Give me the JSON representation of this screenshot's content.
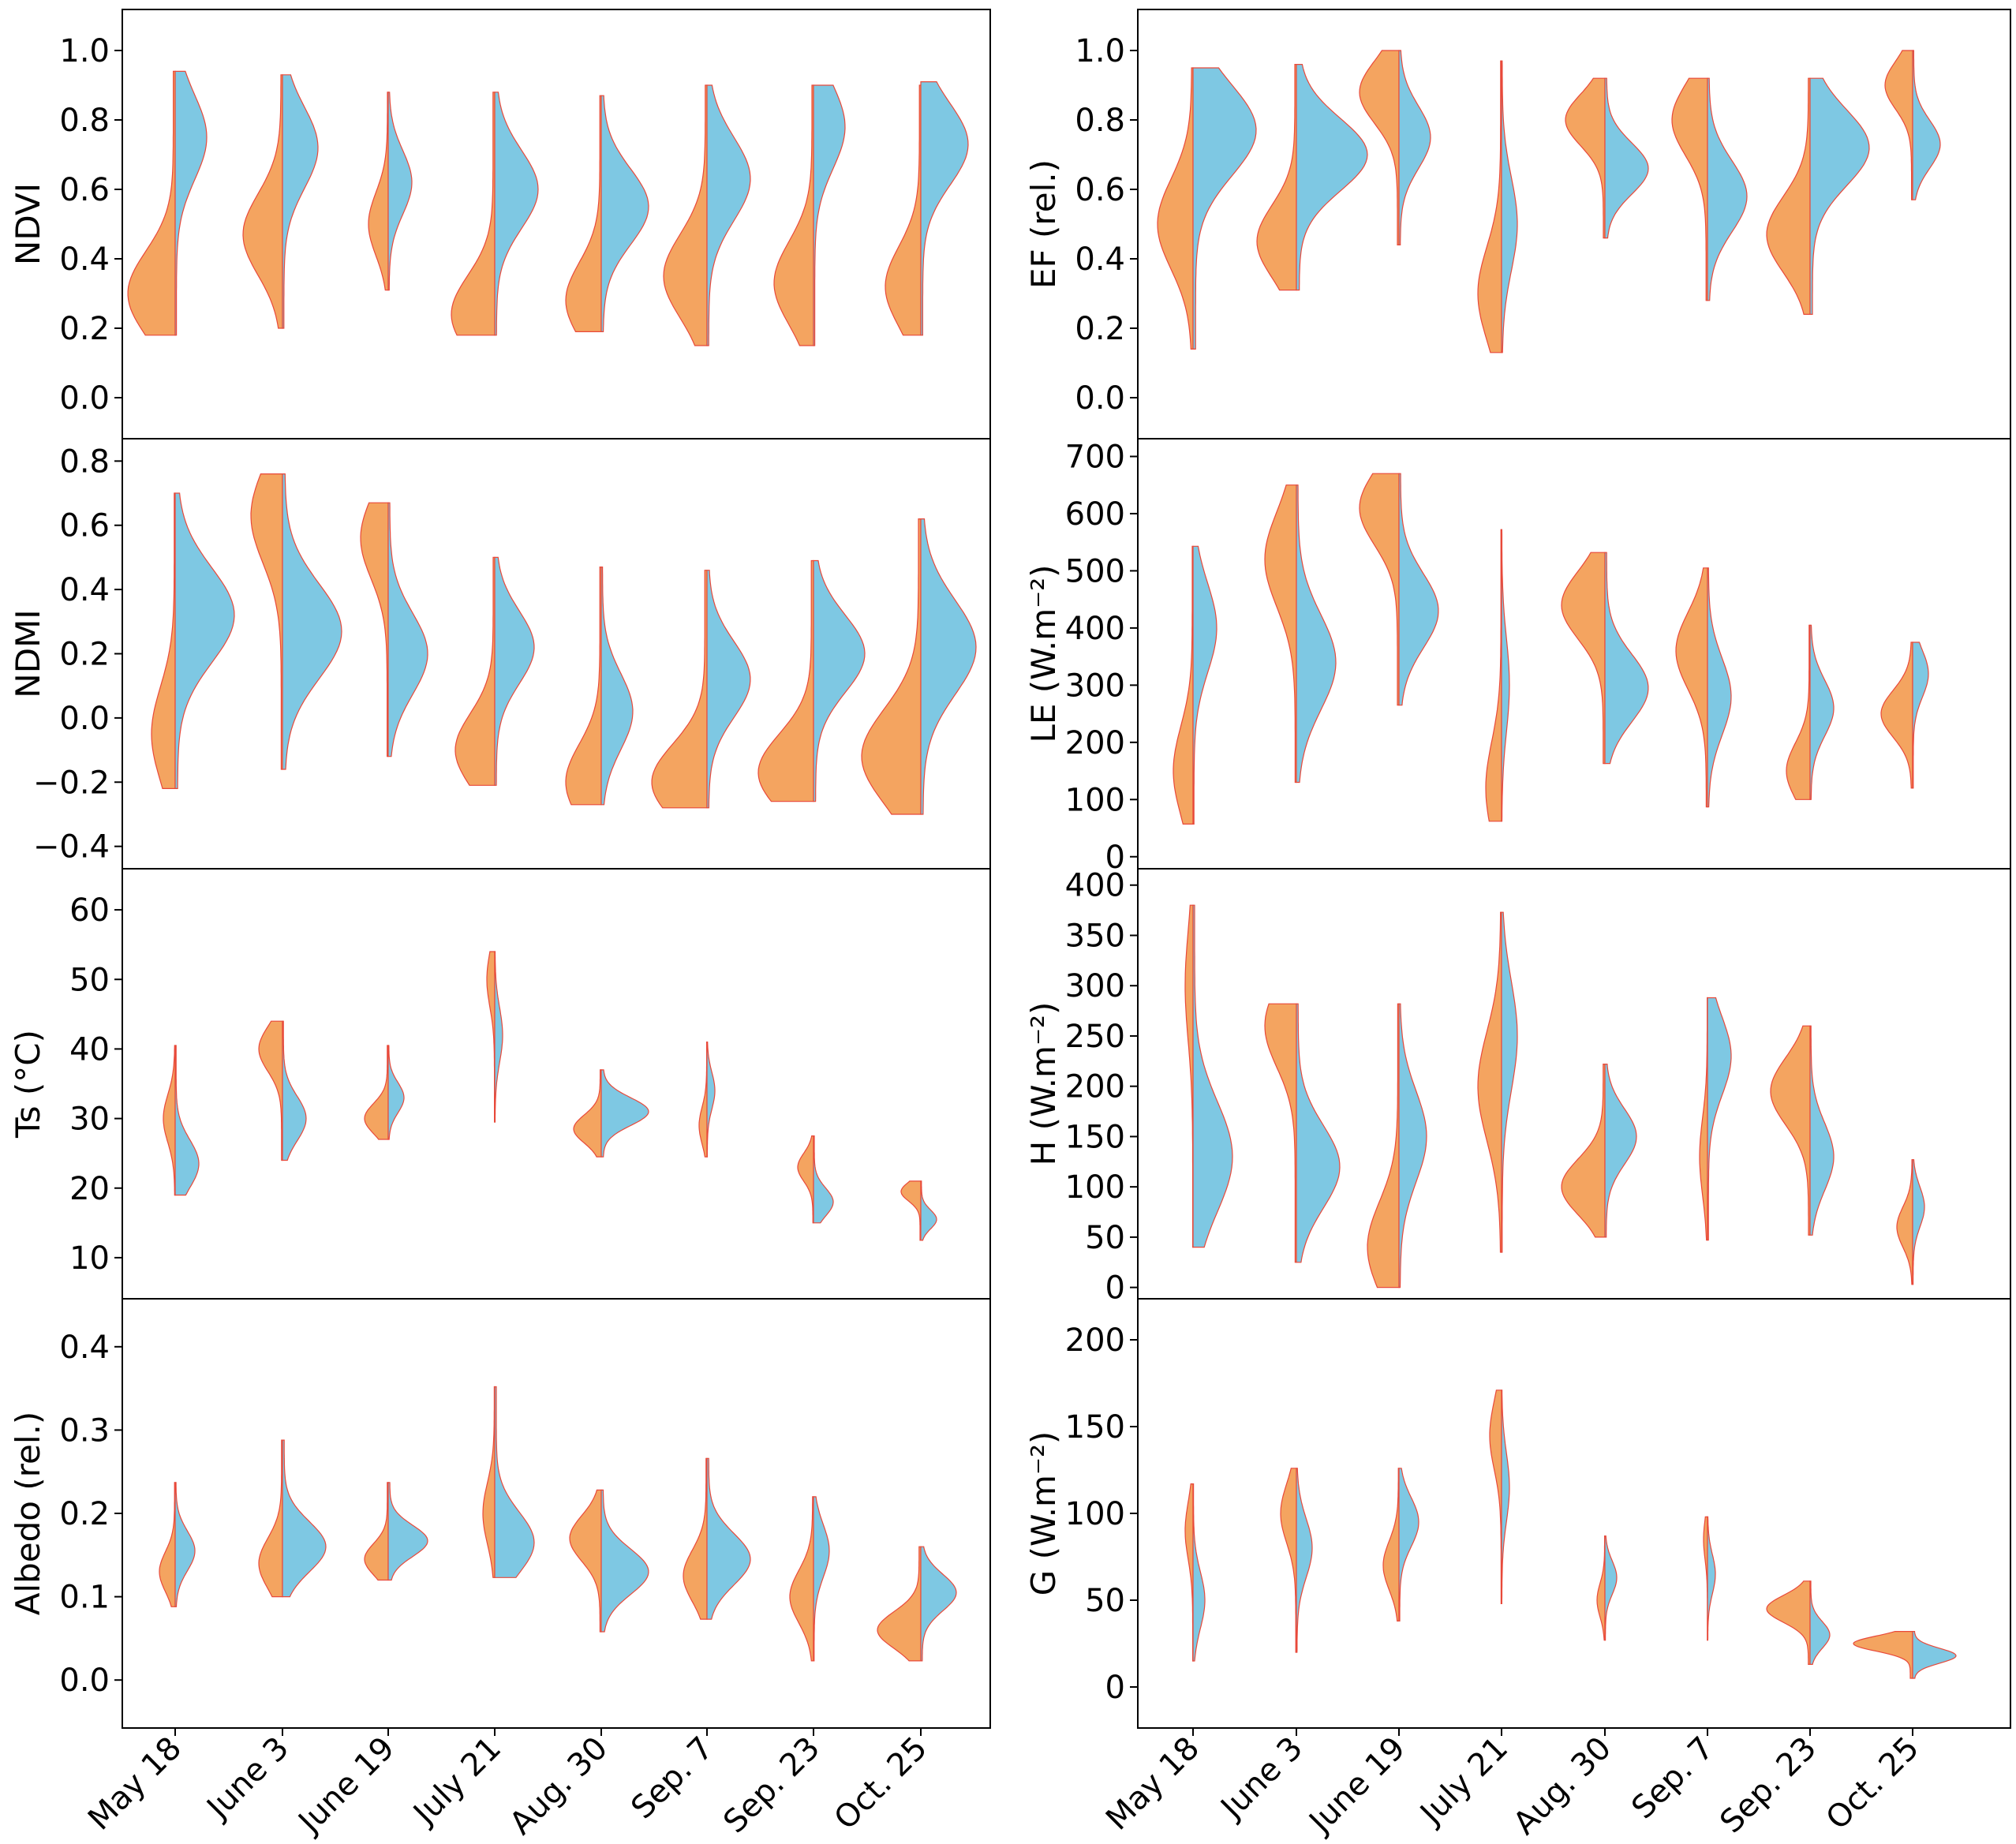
{
  "categories": [
    "May 18",
    "June 3",
    "June 19",
    "July 21",
    "Aug. 30",
    "Sep. 7",
    "Sep. 23",
    "Oct. 25"
  ],
  "colors": {
    "orange": "#f4a460",
    "blue": "#7ec8e3",
    "outline": "#e8493a",
    "axis": "#000000"
  },
  "chart_data": [
    {
      "type": "violin",
      "id": "ndvi",
      "ylabel": "NDVI",
      "ylim": [
        -0.1,
        1.1
      ],
      "yticks": [
        0.0,
        0.2,
        0.4,
        0.6,
        0.8,
        1.0
      ],
      "ytick_labels": [
        "0.0",
        "0.2",
        "0.4",
        "0.6",
        "0.8",
        "1.0"
      ],
      "series": [
        {
          "name": "orange",
          "min": [
            0.18,
            0.2,
            0.31,
            0.18,
            0.19,
            0.15,
            0.15,
            0.18
          ],
          "max": [
            0.94,
            0.93,
            0.88,
            0.88,
            0.87,
            0.9,
            0.9,
            0.9
          ],
          "peak": [
            0.3,
            0.47,
            0.5,
            0.24,
            0.28,
            0.35,
            0.33,
            0.32
          ],
          "width": [
            0.6,
            0.5,
            0.25,
            0.55,
            0.45,
            0.55,
            0.5,
            0.45
          ]
        },
        {
          "name": "blue",
          "min": [
            0.18,
            0.2,
            0.31,
            0.18,
            0.19,
            0.15,
            0.15,
            0.18
          ],
          "max": [
            0.94,
            0.93,
            0.88,
            0.88,
            0.87,
            0.9,
            0.9,
            0.91
          ],
          "peak": [
            0.75,
            0.72,
            0.62,
            0.6,
            0.55,
            0.63,
            0.78,
            0.73
          ],
          "width": [
            0.4,
            0.45,
            0.3,
            0.55,
            0.6,
            0.55,
            0.4,
            0.6
          ]
        }
      ]
    },
    {
      "type": "violin",
      "id": "ef",
      "ylabel": "EF (rel.)",
      "ylim": [
        -0.1,
        1.1
      ],
      "yticks": [
        0.0,
        0.2,
        0.4,
        0.6,
        0.8,
        1.0
      ],
      "ytick_labels": [
        "0.0",
        "0.2",
        "0.4",
        "0.6",
        "0.8",
        "1.0"
      ],
      "series": [
        {
          "name": "orange",
          "min": [
            0.14,
            0.31,
            0.44,
            0.13,
            0.46,
            0.28,
            0.24,
            0.57
          ],
          "max": [
            0.95,
            0.96,
            1.0,
            0.97,
            0.92,
            0.92,
            0.92,
            1.0
          ],
          "peak": [
            0.5,
            0.45,
            0.88,
            0.3,
            0.8,
            0.8,
            0.47,
            0.9
          ],
          "width": [
            0.45,
            0.5,
            0.5,
            0.3,
            0.5,
            0.45,
            0.55,
            0.35
          ]
        },
        {
          "name": "blue",
          "min": [
            0.14,
            0.31,
            0.44,
            0.13,
            0.46,
            0.28,
            0.24,
            0.57
          ],
          "max": [
            0.95,
            0.96,
            1.0,
            0.97,
            0.92,
            0.92,
            0.92,
            1.0
          ],
          "peak": [
            0.77,
            0.7,
            0.75,
            0.5,
            0.66,
            0.58,
            0.72,
            0.73
          ],
          "width": [
            0.8,
            0.9,
            0.4,
            0.2,
            0.55,
            0.5,
            0.75,
            0.35
          ]
        }
      ]
    },
    {
      "type": "violin",
      "id": "ndmi",
      "ylabel": "NDMI",
      "ylim": [
        -0.45,
        0.85
      ],
      "yticks": [
        -0.4,
        -0.2,
        0.0,
        0.2,
        0.4,
        0.6,
        0.8
      ],
      "ytick_labels": [
        "−0.4",
        "−0.2",
        "0.0",
        "0.2",
        "0.4",
        "0.6",
        "0.8"
      ],
      "series": [
        {
          "name": "orange",
          "min": [
            -0.22,
            -0.16,
            -0.12,
            -0.21,
            -0.27,
            -0.28,
            -0.26,
            -0.3
          ],
          "max": [
            0.7,
            0.76,
            0.67,
            0.5,
            0.47,
            0.46,
            0.49,
            0.62
          ],
          "peak": [
            -0.05,
            0.63,
            0.56,
            -0.1,
            -0.2,
            -0.2,
            -0.17,
            -0.12
          ],
          "width": [
            0.3,
            0.4,
            0.35,
            0.5,
            0.45,
            0.7,
            0.7,
            0.75
          ]
        },
        {
          "name": "blue",
          "min": [
            -0.22,
            -0.16,
            -0.12,
            -0.21,
            -0.27,
            -0.28,
            -0.26,
            -0.3
          ],
          "max": [
            0.7,
            0.76,
            0.67,
            0.5,
            0.47,
            0.46,
            0.49,
            0.62
          ],
          "peak": [
            0.32,
            0.27,
            0.2,
            0.22,
            0.02,
            0.12,
            0.2,
            0.22
          ],
          "width": [
            0.75,
            0.75,
            0.5,
            0.5,
            0.4,
            0.55,
            0.65,
            0.7
          ]
        }
      ]
    },
    {
      "type": "violin",
      "id": "le",
      "ylabel": "LE (W.m⁻²)",
      "ylim": [
        -10,
        720
      ],
      "yticks": [
        0,
        100,
        200,
        300,
        400,
        500,
        600,
        700
      ],
      "ytick_labels": [
        "0",
        "100",
        "200",
        "300",
        "400",
        "500",
        "600",
        "700"
      ],
      "series": [
        {
          "name": "orange",
          "min": [
            57,
            130,
            265,
            62,
            163,
            87,
            100,
            120
          ],
          "max": [
            543,
            650,
            670,
            572,
            532,
            505,
            405,
            375
          ],
          "peak": [
            150,
            520,
            610,
            120,
            440,
            360,
            150,
            250
          ],
          "width": [
            0.25,
            0.4,
            0.5,
            0.2,
            0.55,
            0.4,
            0.3,
            0.4
          ]
        },
        {
          "name": "blue",
          "min": [
            57,
            130,
            265,
            62,
            163,
            87,
            100,
            120
          ],
          "max": [
            543,
            650,
            670,
            572,
            532,
            505,
            405,
            375
          ],
          "peak": [
            400,
            340,
            430,
            300,
            295,
            280,
            260,
            320
          ],
          "width": [
            0.3,
            0.5,
            0.5,
            0.1,
            0.55,
            0.3,
            0.3,
            0.2
          ]
        }
      ]
    },
    {
      "type": "violin",
      "id": "ts",
      "ylabel": "Ts (°C)",
      "ylim": [
        5,
        65
      ],
      "yticks": [
        10,
        20,
        30,
        40,
        50,
        60
      ],
      "ytick_labels": [
        "10",
        "20",
        "30",
        "40",
        "50",
        "60"
      ],
      "series": [
        {
          "name": "orange",
          "min": [
            19,
            24,
            27,
            29.5,
            24.5,
            24.5,
            15,
            12.5
          ],
          "max": [
            40.5,
            44,
            40.5,
            54,
            37,
            41,
            27.5,
            21
          ],
          "peak": [
            30,
            40,
            30,
            50,
            28.5,
            29,
            23,
            19.5
          ],
          "width": [
            0.15,
            0.3,
            0.3,
            0.1,
            0.35,
            0.1,
            0.2,
            0.25
          ]
        },
        {
          "name": "blue",
          "min": [
            19,
            24,
            27,
            29.5,
            24.5,
            24.5,
            15,
            12.5
          ],
          "max": [
            40.5,
            44,
            40.5,
            54,
            37,
            41,
            27.5,
            21
          ],
          "peak": [
            23.5,
            30,
            33,
            42,
            31,
            34,
            18,
            15.5
          ],
          "width": [
            0.3,
            0.3,
            0.2,
            0.1,
            0.6,
            0.1,
            0.25,
            0.2
          ]
        }
      ]
    },
    {
      "type": "violin",
      "id": "h",
      "ylabel": "H (W.m⁻²)",
      "ylim": [
        -5,
        410
      ],
      "yticks": [
        0,
        50,
        100,
        150,
        200,
        250,
        300,
        350,
        400
      ],
      "ytick_labels": [
        "0",
        "50",
        "100",
        "150",
        "200",
        "250",
        "300",
        "350",
        "400"
      ],
      "series": [
        {
          "name": "orange",
          "min": [
            40,
            25,
            0,
            35,
            50,
            47,
            52,
            3
          ],
          "max": [
            380,
            282,
            282,
            373,
            222,
            288,
            260,
            127
          ],
          "peak": [
            300,
            260,
            40,
            200,
            100,
            130,
            195,
            60
          ],
          "width": [
            0.1,
            0.4,
            0.4,
            0.3,
            0.55,
            0.1,
            0.5,
            0.2
          ]
        },
        {
          "name": "blue",
          "min": [
            40,
            25,
            0,
            35,
            50,
            47,
            52,
            3
          ],
          "max": [
            380,
            282,
            282,
            373,
            222,
            288,
            260,
            127
          ],
          "peak": [
            130,
            120,
            150,
            250,
            150,
            230,
            130,
            80
          ],
          "width": [
            0.5,
            0.55,
            0.35,
            0.2,
            0.4,
            0.3,
            0.3,
            0.15
          ]
        }
      ]
    },
    {
      "type": "violin",
      "id": "albedo",
      "ylabel": "Albedo (rel.)",
      "ylim": [
        -0.05,
        0.45
      ],
      "yticks": [
        0.0,
        0.1,
        0.2,
        0.3,
        0.4
      ],
      "ytick_labels": [
        "0.0",
        "0.1",
        "0.2",
        "0.3",
        "0.4"
      ],
      "series": [
        {
          "name": "orange",
          "min": [
            0.088,
            0.1,
            0.12,
            0.123,
            0.058,
            0.073,
            0.023,
            0.023
          ],
          "max": [
            0.237,
            0.288,
            0.237,
            0.352,
            0.228,
            0.266,
            0.22,
            0.16
          ],
          "peak": [
            0.13,
            0.14,
            0.145,
            0.2,
            0.17,
            0.125,
            0.1,
            0.06
          ],
          "width": [
            0.2,
            0.3,
            0.3,
            0.15,
            0.4,
            0.3,
            0.3,
            0.55
          ]
        },
        {
          "name": "blue",
          "min": [
            0.088,
            0.1,
            0.12,
            0.123,
            0.058,
            0.073,
            0.023,
            0.023
          ],
          "max": [
            0.237,
            0.288,
            0.237,
            0.352,
            0.228,
            0.266,
            0.22,
            0.16
          ],
          "peak": [
            0.155,
            0.16,
            0.167,
            0.165,
            0.13,
            0.145,
            0.155,
            0.105
          ],
          "width": [
            0.25,
            0.55,
            0.5,
            0.5,
            0.6,
            0.55,
            0.2,
            0.45
          ]
        }
      ]
    },
    {
      "type": "violin",
      "id": "g",
      "ylabel": "G (W.m⁻²)",
      "ylim": [
        -20,
        220
      ],
      "yticks": [
        0,
        50,
        100,
        150,
        200
      ],
      "ytick_labels": [
        "0",
        "50",
        "100",
        "150",
        "200"
      ],
      "series": [
        {
          "name": "orange",
          "min": [
            15,
            20,
            38,
            48,
            27,
            27,
            13,
            5
          ],
          "max": [
            117,
            126,
            126,
            171,
            87,
            98,
            61,
            32
          ],
          "peak": [
            90,
            100,
            70,
            145,
            50,
            85,
            45,
            25
          ],
          "width": [
            0.1,
            0.2,
            0.2,
            0.15,
            0.1,
            0.05,
            0.55,
            0.75
          ]
        },
        {
          "name": "blue",
          "min": [
            15,
            20,
            38,
            48,
            27,
            27,
            13,
            5
          ],
          "max": [
            117,
            126,
            126,
            171,
            87,
            98,
            61,
            32
          ],
          "peak": [
            50,
            80,
            95,
            115,
            63,
            65,
            30,
            18
          ],
          "width": [
            0.15,
            0.2,
            0.25,
            0.1,
            0.15,
            0.1,
            0.25,
            0.55
          ]
        }
      ]
    }
  ]
}
